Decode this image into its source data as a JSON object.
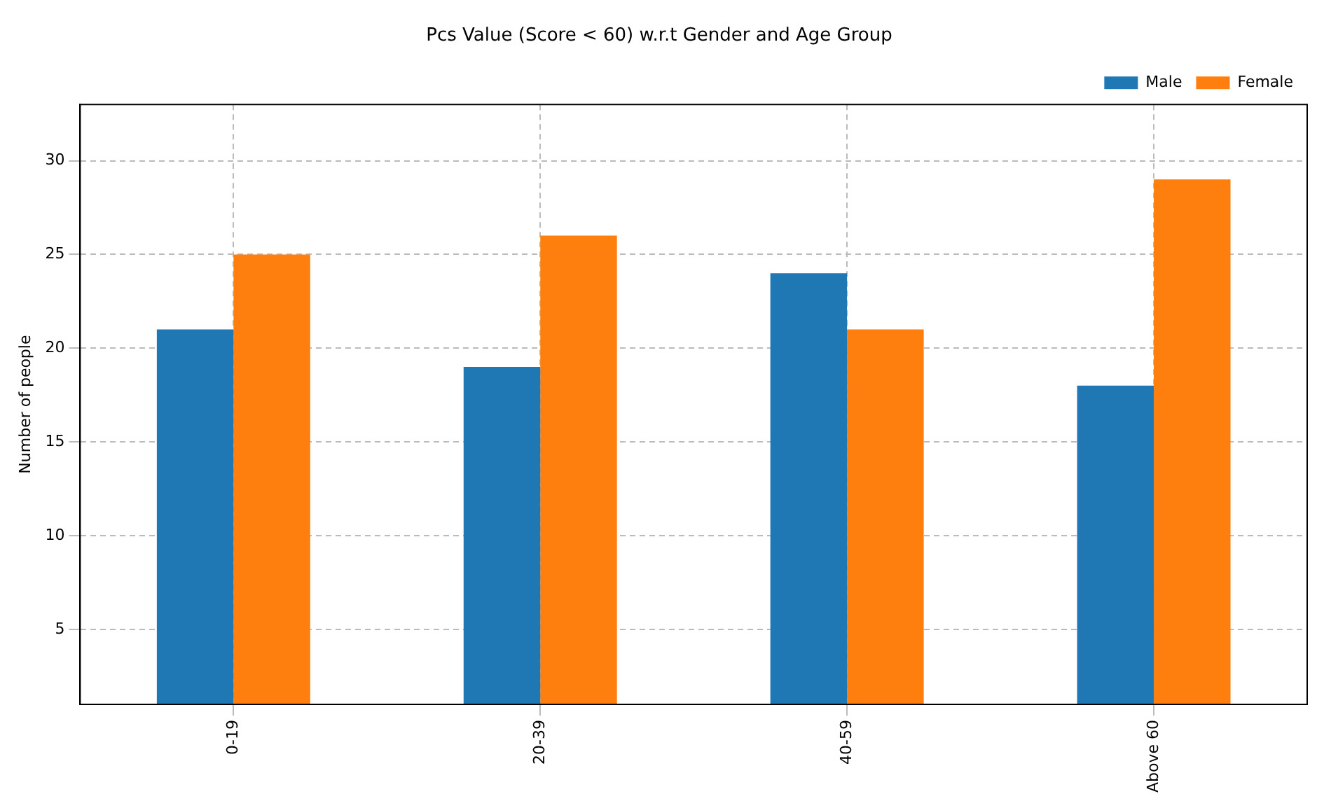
{
  "chart_data": {
    "type": "bar",
    "title": "Pcs Value (Score < 60) w.r.t Gender and Age Group",
    "ylabel": "Number of people",
    "categories": [
      "0-19",
      "20-39",
      "40-59",
      "Above 60"
    ],
    "series": [
      {
        "name": "Male",
        "color": "#1f77b4",
        "values": [
          21,
          19,
          24,
          18
        ]
      },
      {
        "name": "Female",
        "color": "#ff7f0e",
        "values": [
          25,
          26,
          21,
          29
        ]
      }
    ],
    "ylim": [
      1,
      33
    ],
    "yticks": [
      5,
      10,
      15,
      20,
      25,
      30
    ],
    "grid": true,
    "legend": "top right"
  }
}
